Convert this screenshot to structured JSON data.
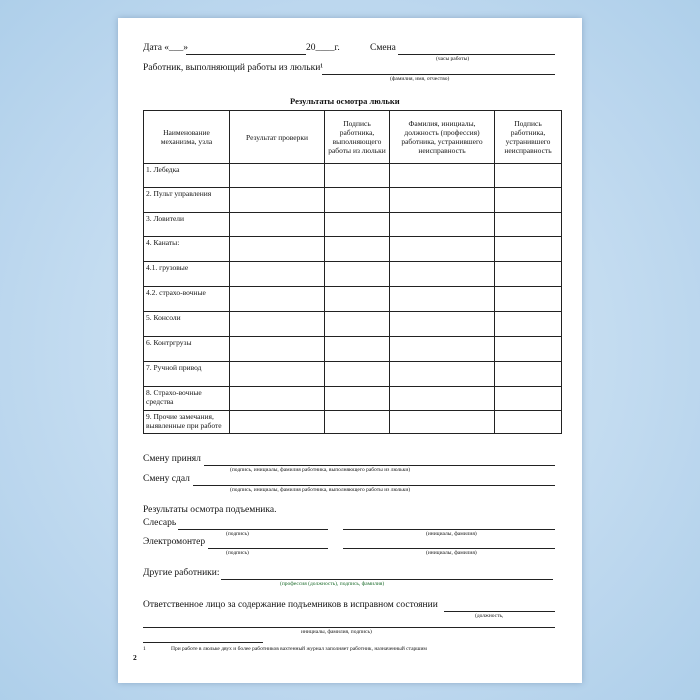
{
  "header": {
    "date_label": "Дата «___»",
    "year_label": "20____г.",
    "shift_label": "Смена",
    "shift_hint": "(часы работы)",
    "worker_label": "Работник, выполняющий работы из люльки¹",
    "worker_hint": "(фамилия, имя, отчество)"
  },
  "table": {
    "title": "Результаты осмотра люльки",
    "columns": [
      "Наименование механизма, узла",
      "Результат проверки",
      "Подпись работника, выполняющего работы из люльки",
      "Фамилия, инициалы, должность (профессия) работника, устранившего неисправность",
      "Подпись работника, устранившего неисправность"
    ],
    "rows": [
      "1. Лебедка",
      "2. Пульт управления",
      "3. Ловители",
      "4. Канаты:",
      "4.1. грузовые",
      "4.2. страхо-вочные",
      "5. Консоли",
      "6. Контргрузы",
      "7. Ручной привод",
      "8. Страхо-вочные средства",
      "9. Прочие замечания, выявленные при работе"
    ]
  },
  "footer": {
    "accepted_label": "Смену принял",
    "accepted_hint": "(подпись, инициалы, фамилия работника, выполняющего работы из люльки)",
    "handed_label": "Смену сдал",
    "handed_hint": "(подпись, инициалы, фамилия работника, выполняющего работы из люльки)",
    "lift_title": "Результаты осмотра подъемника.",
    "locksmith_label": "Слесарь",
    "electrician_label": "Электромонтер",
    "signature_hint": "(подпись)",
    "initials_hint": "(инициалы, фамилия)",
    "others_label": "Другие работники:",
    "others_hint": "(профессия (должность), подпись, фамилия)",
    "responsible_label": "Ответственное лицо за содержание подъемников в исправном состоянии",
    "responsible_hint1": "(должность,",
    "responsible_hint2": "инициалы, фамилия, подпись)",
    "footnote_mark": "1",
    "footnote_text": "При работе в люльке двух и более работников вахтенный журнал заполняет работник, назначенный старшим",
    "page_number": "2"
  }
}
